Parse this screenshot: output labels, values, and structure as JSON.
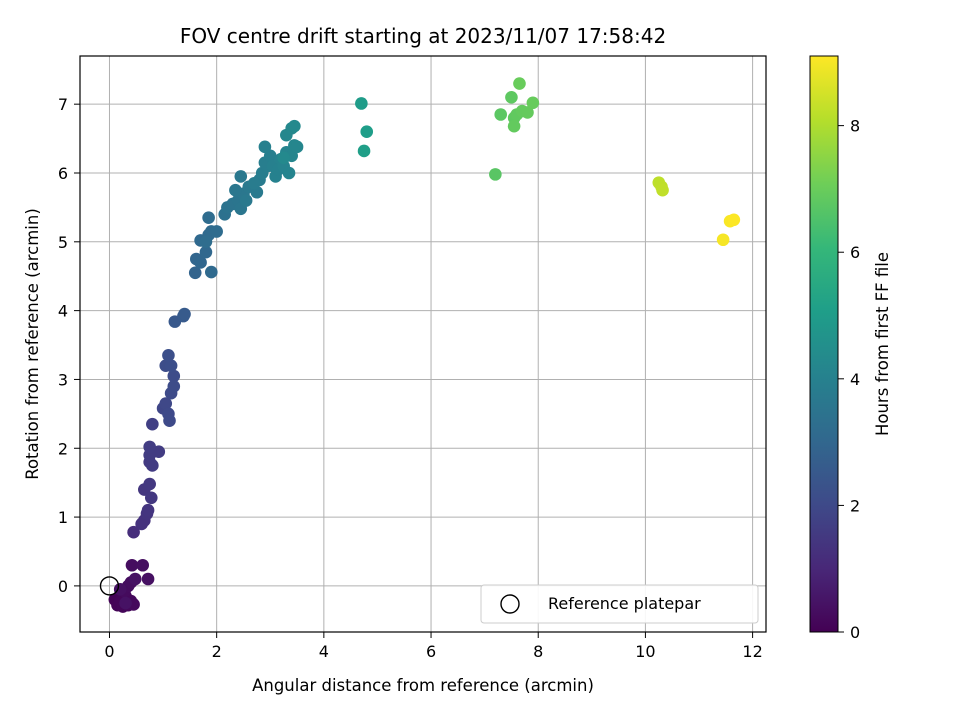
{
  "chart_data": {
    "type": "scatter",
    "title": "FOV centre drift starting at 2023/11/07 17:58:42",
    "xlabel": "Angular distance from reference (arcmin)",
    "ylabel": "Rotation from reference (arcmin)",
    "xlim": [
      -0.55,
      12.25
    ],
    "ylim": [
      -0.67,
      7.7
    ],
    "xticks": [
      0,
      2,
      4,
      6,
      8,
      10,
      12
    ],
    "yticks": [
      0,
      1,
      2,
      3,
      4,
      5,
      6,
      7
    ],
    "grid": true,
    "colormap": "viridis",
    "colorbar": {
      "label": "Hours from first FF file",
      "range": [
        0,
        9.1
      ],
      "ticks": [
        0,
        2,
        4,
        6,
        8
      ]
    },
    "legend": {
      "position": "lower-right",
      "entries": [
        {
          "label": "Reference platepar",
          "marker": "open-circle"
        }
      ]
    },
    "reference_point": {
      "x": 0,
      "y": 0
    },
    "points": [
      {
        "x": 0.1,
        "y": -0.2,
        "t": 0.05
      },
      {
        "x": 0.15,
        "y": -0.28,
        "t": 0.08
      },
      {
        "x": 0.2,
        "y": -0.22,
        "t": 0.1
      },
      {
        "x": 0.25,
        "y": -0.3,
        "t": 0.12
      },
      {
        "x": 0.3,
        "y": -0.15,
        "t": 0.15
      },
      {
        "x": 0.35,
        "y": -0.28,
        "t": 0.18
      },
      {
        "x": 0.4,
        "y": -0.22,
        "t": 0.2
      },
      {
        "x": 0.45,
        "y": -0.27,
        "t": 0.22
      },
      {
        "x": 0.28,
        "y": -0.08,
        "t": 0.25
      },
      {
        "x": 0.35,
        "y": 0.0,
        "t": 0.28
      },
      {
        "x": 0.4,
        "y": 0.05,
        "t": 0.3
      },
      {
        "x": 0.42,
        "y": 0.3,
        "t": 0.32
      },
      {
        "x": 0.62,
        "y": 0.3,
        "t": 0.35
      },
      {
        "x": 0.72,
        "y": 0.1,
        "t": 0.38
      },
      {
        "x": 0.2,
        "y": -0.05,
        "t": 0.4
      },
      {
        "x": 0.48,
        "y": 0.1,
        "t": 0.42
      },
      {
        "x": 0.3,
        "y": -0.25,
        "t": 0.45
      },
      {
        "x": 0.45,
        "y": 0.78,
        "t": 1.2
      },
      {
        "x": 0.6,
        "y": 0.9,
        "t": 1.3
      },
      {
        "x": 0.65,
        "y": 0.95,
        "t": 1.32
      },
      {
        "x": 0.7,
        "y": 1.05,
        "t": 1.38
      },
      {
        "x": 0.72,
        "y": 1.1,
        "t": 1.4
      },
      {
        "x": 0.65,
        "y": 1.4,
        "t": 1.45
      },
      {
        "x": 0.78,
        "y": 1.28,
        "t": 1.48
      },
      {
        "x": 0.75,
        "y": 1.48,
        "t": 1.5
      },
      {
        "x": 0.75,
        "y": 1.8,
        "t": 1.55
      },
      {
        "x": 0.8,
        "y": 1.75,
        "t": 1.58
      },
      {
        "x": 0.75,
        "y": 1.9,
        "t": 1.6
      },
      {
        "x": 0.92,
        "y": 1.95,
        "t": 1.62
      },
      {
        "x": 0.75,
        "y": 2.02,
        "t": 1.65
      },
      {
        "x": 0.8,
        "y": 2.35,
        "t": 1.7
      },
      {
        "x": 1.0,
        "y": 2.58,
        "t": 1.9
      },
      {
        "x": 1.05,
        "y": 2.65,
        "t": 1.95
      },
      {
        "x": 1.1,
        "y": 2.5,
        "t": 2.0
      },
      {
        "x": 1.12,
        "y": 2.4,
        "t": 2.02
      },
      {
        "x": 1.15,
        "y": 2.8,
        "t": 2.05
      },
      {
        "x": 1.2,
        "y": 2.9,
        "t": 2.08
      },
      {
        "x": 1.2,
        "y": 3.05,
        "t": 2.1
      },
      {
        "x": 1.05,
        "y": 3.2,
        "t": 2.12
      },
      {
        "x": 1.15,
        "y": 3.2,
        "t": 2.15
      },
      {
        "x": 1.1,
        "y": 3.35,
        "t": 2.18
      },
      {
        "x": 1.22,
        "y": 3.84,
        "t": 2.5
      },
      {
        "x": 1.38,
        "y": 3.92,
        "t": 2.55
      },
      {
        "x": 1.4,
        "y": 3.95,
        "t": 2.58
      },
      {
        "x": 1.6,
        "y": 4.55,
        "t": 2.9
      },
      {
        "x": 1.62,
        "y": 4.75,
        "t": 2.95
      },
      {
        "x": 1.7,
        "y": 4.7,
        "t": 3.0
      },
      {
        "x": 1.8,
        "y": 4.85,
        "t": 3.05
      },
      {
        "x": 1.7,
        "y": 5.02,
        "t": 3.08
      },
      {
        "x": 1.9,
        "y": 4.56,
        "t": 3.1
      },
      {
        "x": 1.85,
        "y": 5.1,
        "t": 3.12
      },
      {
        "x": 1.9,
        "y": 5.15,
        "t": 3.15
      },
      {
        "x": 2.0,
        "y": 5.15,
        "t": 3.18
      },
      {
        "x": 1.85,
        "y": 5.35,
        "t": 3.2
      },
      {
        "x": 1.8,
        "y": 5.0,
        "t": 3.22
      },
      {
        "x": 2.15,
        "y": 5.4,
        "t": 3.4
      },
      {
        "x": 2.2,
        "y": 5.5,
        "t": 3.45
      },
      {
        "x": 2.3,
        "y": 5.55,
        "t": 3.5
      },
      {
        "x": 2.4,
        "y": 5.6,
        "t": 3.55
      },
      {
        "x": 2.45,
        "y": 5.48,
        "t": 3.58
      },
      {
        "x": 2.5,
        "y": 5.7,
        "t": 3.6
      },
      {
        "x": 2.35,
        "y": 5.75,
        "t": 3.62
      },
      {
        "x": 2.45,
        "y": 5.95,
        "t": 3.65
      },
      {
        "x": 2.55,
        "y": 5.6,
        "t": 3.68
      },
      {
        "x": 2.6,
        "y": 5.8,
        "t": 3.7
      },
      {
        "x": 2.75,
        "y": 5.72,
        "t": 3.75
      },
      {
        "x": 2.8,
        "y": 5.9,
        "t": 3.78
      },
      {
        "x": 2.7,
        "y": 5.85,
        "t": 3.8
      },
      {
        "x": 2.85,
        "y": 6.0,
        "t": 3.85
      },
      {
        "x": 2.9,
        "y": 6.15,
        "t": 3.88
      },
      {
        "x": 2.95,
        "y": 6.1,
        "t": 3.9
      },
      {
        "x": 3.0,
        "y": 6.25,
        "t": 3.92
      },
      {
        "x": 3.05,
        "y": 6.1,
        "t": 3.95
      },
      {
        "x": 2.9,
        "y": 6.38,
        "t": 3.98
      },
      {
        "x": 3.1,
        "y": 5.95,
        "t": 4.0
      },
      {
        "x": 3.15,
        "y": 6.05,
        "t": 4.02
      },
      {
        "x": 3.2,
        "y": 6.2,
        "t": 4.05
      },
      {
        "x": 3.25,
        "y": 6.1,
        "t": 4.08
      },
      {
        "x": 3.3,
        "y": 6.3,
        "t": 4.1
      },
      {
        "x": 3.35,
        "y": 6.0,
        "t": 4.12
      },
      {
        "x": 3.4,
        "y": 6.25,
        "t": 4.15
      },
      {
        "x": 3.45,
        "y": 6.4,
        "t": 4.18
      },
      {
        "x": 3.5,
        "y": 6.38,
        "t": 4.2
      },
      {
        "x": 3.3,
        "y": 6.55,
        "t": 4.22
      },
      {
        "x": 3.4,
        "y": 6.65,
        "t": 4.25
      },
      {
        "x": 3.45,
        "y": 6.68,
        "t": 4.28
      },
      {
        "x": 3.25,
        "y": 6.22,
        "t": 4.3
      },
      {
        "x": 4.7,
        "y": 7.01,
        "t": 5.0
      },
      {
        "x": 4.8,
        "y": 6.6,
        "t": 5.05
      },
      {
        "x": 4.75,
        "y": 6.32,
        "t": 5.1
      },
      {
        "x": 7.2,
        "y": 5.98,
        "t": 6.7
      },
      {
        "x": 7.3,
        "y": 6.85,
        "t": 6.75
      },
      {
        "x": 7.5,
        "y": 7.1,
        "t": 6.8
      },
      {
        "x": 7.55,
        "y": 6.8,
        "t": 6.82
      },
      {
        "x": 7.6,
        "y": 6.85,
        "t": 6.85
      },
      {
        "x": 7.55,
        "y": 6.68,
        "t": 6.88
      },
      {
        "x": 7.7,
        "y": 6.9,
        "t": 6.9
      },
      {
        "x": 7.8,
        "y": 6.88,
        "t": 6.92
      },
      {
        "x": 7.9,
        "y": 7.02,
        "t": 6.95
      },
      {
        "x": 7.65,
        "y": 7.3,
        "t": 6.98
      },
      {
        "x": 10.25,
        "y": 5.86,
        "t": 8.2
      },
      {
        "x": 10.3,
        "y": 5.8,
        "t": 8.22
      },
      {
        "x": 10.32,
        "y": 5.75,
        "t": 8.25
      },
      {
        "x": 11.45,
        "y": 5.03,
        "t": 9.0
      },
      {
        "x": 11.58,
        "y": 5.3,
        "t": 9.05
      },
      {
        "x": 11.65,
        "y": 5.32,
        "t": 9.08
      }
    ]
  }
}
